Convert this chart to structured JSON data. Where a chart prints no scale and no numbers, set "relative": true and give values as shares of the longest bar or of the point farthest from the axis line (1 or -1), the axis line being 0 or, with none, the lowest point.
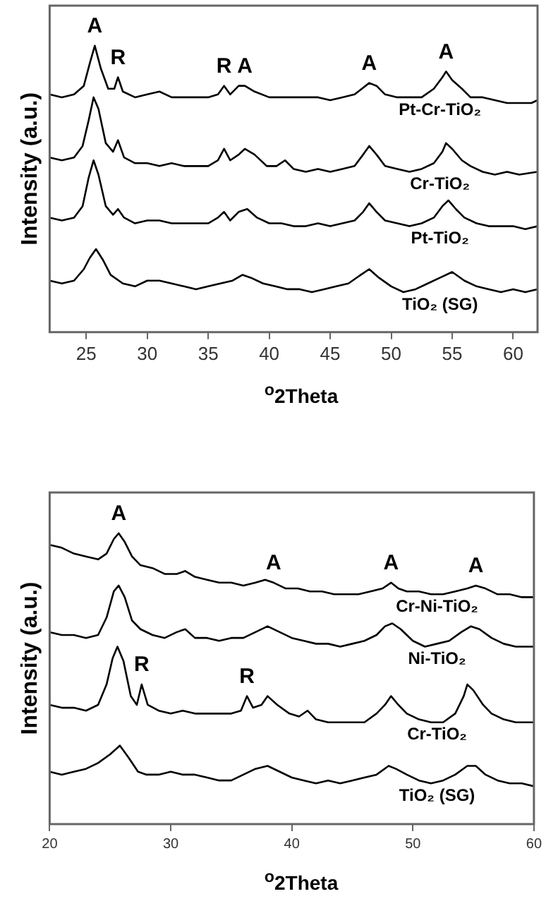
{
  "chart_data": [
    {
      "type": "line",
      "relative": true,
      "xlabel": "$^{o}$2Theta",
      "ylabel": "Intensity (a.u.)",
      "xlim": [
        22,
        62
      ],
      "xticks": [
        25,
        30,
        35,
        40,
        45,
        50,
        55,
        60
      ],
      "marker": "none",
      "line_style": "solid",
      "annotations": [
        {
          "text": "A",
          "x": 25.7,
          "y": 1.0
        },
        {
          "text": "R",
          "x": 27.6,
          "y": 0.89
        },
        {
          "text": "R",
          "x": 36.3,
          "y": 0.86
        },
        {
          "text": "A",
          "x": 38,
          "y": 0.86
        },
        {
          "text": "A",
          "x": 48.2,
          "y": 0.87
        },
        {
          "text": "A",
          "x": 54.5,
          "y": 0.91
        }
      ],
      "series": [
        {
          "name": "Pt-Cr-TiO₂",
          "color": "#000000",
          "x": [
            22,
            23,
            24,
            24.8,
            25.3,
            25.7,
            26.2,
            26.8,
            27.3,
            27.6,
            28,
            29,
            30,
            31,
            32,
            33,
            34,
            35,
            35.8,
            36.3,
            36.8,
            37.5,
            38,
            38.8,
            40,
            41,
            42,
            43,
            44,
            45,
            46,
            47,
            47.6,
            48.2,
            48.8,
            49.5,
            50.5,
            51.5,
            52.5,
            53.5,
            54.2,
            54.5,
            55,
            55.8,
            56.5,
            57.5,
            58.5,
            59.5,
            60.5,
            61.5,
            62
          ],
          "values": [
            0.83,
            0.82,
            0.83,
            0.86,
            0.94,
            1.0,
            0.92,
            0.85,
            0.85,
            0.89,
            0.84,
            0.82,
            0.83,
            0.84,
            0.82,
            0.82,
            0.82,
            0.82,
            0.83,
            0.86,
            0.83,
            0.86,
            0.86,
            0.84,
            0.82,
            0.82,
            0.82,
            0.82,
            0.82,
            0.81,
            0.82,
            0.83,
            0.85,
            0.87,
            0.86,
            0.83,
            0.82,
            0.82,
            0.82,
            0.85,
            0.89,
            0.91,
            0.88,
            0.85,
            0.82,
            0.82,
            0.81,
            0.8,
            0.8,
            0.8,
            0.81
          ]
        },
        {
          "name": "Cr-TiO₂",
          "color": "#000000",
          "x": [
            22,
            23,
            24,
            24.7,
            25.2,
            25.6,
            26,
            26.6,
            27.2,
            27.6,
            28.1,
            29,
            30,
            31,
            32,
            33,
            34,
            35,
            35.8,
            36.3,
            36.8,
            37.5,
            38,
            38.8,
            39.8,
            40.6,
            41.3,
            42,
            43,
            44,
            45,
            46,
            47,
            47.7,
            48.2,
            48.8,
            49.5,
            50.5,
            51.5,
            52.5,
            53.5,
            54.2,
            54.5,
            55,
            55.8,
            56.5,
            57.5,
            58.5,
            59.5,
            60.5,
            62
          ],
          "values": [
            0.61,
            0.6,
            0.61,
            0.65,
            0.74,
            0.82,
            0.78,
            0.66,
            0.63,
            0.67,
            0.61,
            0.59,
            0.59,
            0.58,
            0.59,
            0.58,
            0.58,
            0.58,
            0.6,
            0.64,
            0.6,
            0.62,
            0.64,
            0.62,
            0.58,
            0.58,
            0.6,
            0.57,
            0.56,
            0.57,
            0.56,
            0.57,
            0.58,
            0.62,
            0.65,
            0.62,
            0.58,
            0.57,
            0.56,
            0.57,
            0.59,
            0.63,
            0.66,
            0.64,
            0.6,
            0.58,
            0.56,
            0.55,
            0.56,
            0.55,
            0.56
          ]
        },
        {
          "name": "Pt-TiO₂",
          "color": "#000000",
          "x": [
            22,
            23,
            24,
            24.7,
            25.2,
            25.6,
            26,
            26.6,
            27.2,
            27.6,
            28.1,
            29,
            30,
            31,
            32,
            33,
            34,
            35,
            35.8,
            36.3,
            36.8,
            37.5,
            38.2,
            39,
            40,
            41,
            42,
            43,
            44,
            45,
            46,
            47,
            47.7,
            48.2,
            48.8,
            49.5,
            50.5,
            51.5,
            52.5,
            53.5,
            54.2,
            54.7,
            55.3,
            56,
            57,
            58,
            59,
            60,
            61,
            62
          ],
          "values": [
            0.4,
            0.39,
            0.4,
            0.44,
            0.54,
            0.6,
            0.55,
            0.44,
            0.41,
            0.43,
            0.4,
            0.38,
            0.39,
            0.39,
            0.38,
            0.38,
            0.38,
            0.38,
            0.4,
            0.42,
            0.39,
            0.42,
            0.43,
            0.4,
            0.38,
            0.38,
            0.37,
            0.37,
            0.38,
            0.37,
            0.38,
            0.39,
            0.42,
            0.45,
            0.42,
            0.39,
            0.38,
            0.37,
            0.38,
            0.4,
            0.44,
            0.46,
            0.43,
            0.4,
            0.38,
            0.37,
            0.37,
            0.37,
            0.36,
            0.37
          ]
        },
        {
          "name": "TiO₂ (SG)",
          "color": "#000000",
          "x": [
            22,
            23,
            24,
            24.8,
            25.3,
            25.8,
            26.4,
            27,
            28,
            29,
            30,
            31,
            32,
            33,
            34,
            35,
            36,
            37,
            37.8,
            38.5,
            39.5,
            40.5,
            41.5,
            42.5,
            43.5,
            44.5,
            45.5,
            46.5,
            47.5,
            48.2,
            49,
            50,
            51,
            52,
            53,
            54,
            55,
            56,
            57,
            58,
            59,
            60,
            61,
            62
          ],
          "values": [
            0.18,
            0.17,
            0.18,
            0.22,
            0.26,
            0.29,
            0.25,
            0.2,
            0.17,
            0.16,
            0.18,
            0.18,
            0.17,
            0.16,
            0.15,
            0.16,
            0.17,
            0.18,
            0.2,
            0.19,
            0.17,
            0.16,
            0.15,
            0.15,
            0.14,
            0.15,
            0.16,
            0.17,
            0.2,
            0.22,
            0.19,
            0.16,
            0.14,
            0.15,
            0.17,
            0.19,
            0.21,
            0.18,
            0.16,
            0.15,
            0.14,
            0.15,
            0.14,
            0.15
          ]
        }
      ]
    },
    {
      "type": "line",
      "relative": true,
      "xlabel": "$^{o}$2Theta",
      "ylabel": "Intensity (a.u.)",
      "xlim": [
        20,
        60
      ],
      "xticks": [
        20,
        30,
        40,
        50,
        60
      ],
      "marker": "none",
      "line_style": "solid",
      "annotations": [
        {
          "text": "A",
          "x": 25.7,
          "y": 1.0
        },
        {
          "text": "A",
          "x": 38.5,
          "y": 0.83
        },
        {
          "text": "A",
          "x": 48.2,
          "y": 0.83
        },
        {
          "text": "A",
          "x": 55.2,
          "y": 0.82
        },
        {
          "text": "R",
          "x": 27.6,
          "y": 0.48
        },
        {
          "text": "R",
          "x": 36.3,
          "y": 0.44
        }
      ],
      "series": [
        {
          "name": "Cr-Ni-TiO₂",
          "color": "#000000",
          "x": [
            20,
            21,
            22,
            23,
            24,
            24.7,
            25.3,
            25.7,
            26.2,
            26.8,
            27.5,
            28.5,
            29.5,
            30.5,
            31.2,
            32,
            33,
            34,
            35,
            36,
            37,
            37.8,
            38.5,
            39.5,
            40.5,
            41.5,
            42.5,
            43.5,
            44.5,
            45.5,
            46.5,
            47.5,
            48.2,
            48.8,
            49.5,
            50.5,
            51.5,
            52.5,
            53.5,
            54.5,
            55.2,
            56,
            57,
            58,
            59,
            60
          ],
          "values": [
            0.96,
            0.95,
            0.93,
            0.92,
            0.91,
            0.93,
            0.98,
            1.0,
            0.97,
            0.92,
            0.89,
            0.88,
            0.86,
            0.86,
            0.87,
            0.85,
            0.84,
            0.83,
            0.83,
            0.82,
            0.83,
            0.84,
            0.83,
            0.81,
            0.81,
            0.8,
            0.8,
            0.79,
            0.79,
            0.79,
            0.8,
            0.81,
            0.83,
            0.81,
            0.8,
            0.8,
            0.79,
            0.79,
            0.8,
            0.81,
            0.82,
            0.81,
            0.79,
            0.79,
            0.78,
            0.78
          ]
        },
        {
          "name": "Ni-TiO₂",
          "color": "#000000",
          "x": [
            20,
            21,
            22,
            23,
            24,
            24.7,
            25.3,
            25.7,
            26.2,
            26.8,
            27.5,
            28.5,
            29.5,
            30.5,
            31.2,
            32,
            33,
            34,
            35,
            36,
            37,
            38,
            39,
            40,
            41,
            42,
            43,
            44,
            45,
            46,
            47,
            47.7,
            48.3,
            49,
            50,
            51,
            52,
            53,
            54,
            54.8,
            55.5,
            56.5,
            57.5,
            58.5,
            59.5,
            60
          ],
          "values": [
            0.66,
            0.65,
            0.65,
            0.64,
            0.65,
            0.71,
            0.8,
            0.82,
            0.78,
            0.7,
            0.67,
            0.65,
            0.64,
            0.66,
            0.67,
            0.64,
            0.64,
            0.63,
            0.64,
            0.64,
            0.66,
            0.68,
            0.66,
            0.64,
            0.63,
            0.62,
            0.62,
            0.61,
            0.62,
            0.63,
            0.65,
            0.68,
            0.69,
            0.67,
            0.63,
            0.61,
            0.62,
            0.63,
            0.66,
            0.68,
            0.67,
            0.64,
            0.62,
            0.61,
            0.61,
            0.61
          ]
        },
        {
          "name": "Cr-TiO₂",
          "color": "#000000",
          "x": [
            20,
            21,
            22,
            23,
            24,
            24.7,
            25.2,
            25.6,
            26.1,
            26.7,
            27.2,
            27.6,
            28.1,
            29,
            30,
            31,
            32,
            33,
            34,
            35,
            35.8,
            36.3,
            36.8,
            37.5,
            38,
            38.8,
            39.8,
            40.6,
            41.3,
            42,
            43,
            44,
            45,
            46,
            47,
            47.7,
            48.2,
            48.8,
            49.5,
            50.5,
            51.5,
            52.5,
            53.5,
            54.2,
            54.5,
            55,
            55.8,
            56.5,
            57.5,
            58.5,
            59.5,
            60
          ],
          "values": [
            0.41,
            0.4,
            0.4,
            0.39,
            0.41,
            0.48,
            0.57,
            0.61,
            0.56,
            0.44,
            0.41,
            0.48,
            0.41,
            0.39,
            0.38,
            0.39,
            0.38,
            0.38,
            0.38,
            0.38,
            0.39,
            0.44,
            0.4,
            0.41,
            0.44,
            0.41,
            0.38,
            0.37,
            0.39,
            0.36,
            0.35,
            0.35,
            0.35,
            0.35,
            0.38,
            0.41,
            0.44,
            0.41,
            0.38,
            0.36,
            0.35,
            0.35,
            0.38,
            0.44,
            0.48,
            0.46,
            0.41,
            0.38,
            0.36,
            0.35,
            0.35,
            0.35
          ]
        },
        {
          "name": "TiO₂ (SG)",
          "color": "#000000",
          "x": [
            20,
            21,
            22,
            23,
            24,
            25,
            25.8,
            26.5,
            27.3,
            28,
            29,
            30,
            31,
            32,
            33,
            34,
            35,
            36,
            37,
            38,
            39,
            40,
            41,
            42,
            43,
            44,
            45,
            46,
            47,
            48,
            48.6,
            49.5,
            50.5,
            51.5,
            52.5,
            53.5,
            54.5,
            55.2,
            56,
            57,
            58,
            59,
            60
          ],
          "values": [
            0.18,
            0.17,
            0.18,
            0.19,
            0.21,
            0.24,
            0.27,
            0.23,
            0.18,
            0.17,
            0.17,
            0.18,
            0.17,
            0.17,
            0.16,
            0.15,
            0.15,
            0.17,
            0.19,
            0.2,
            0.18,
            0.16,
            0.15,
            0.14,
            0.15,
            0.14,
            0.15,
            0.16,
            0.17,
            0.2,
            0.19,
            0.17,
            0.15,
            0.14,
            0.15,
            0.17,
            0.2,
            0.2,
            0.17,
            0.15,
            0.14,
            0.14,
            0.13
          ]
        }
      ]
    }
  ]
}
